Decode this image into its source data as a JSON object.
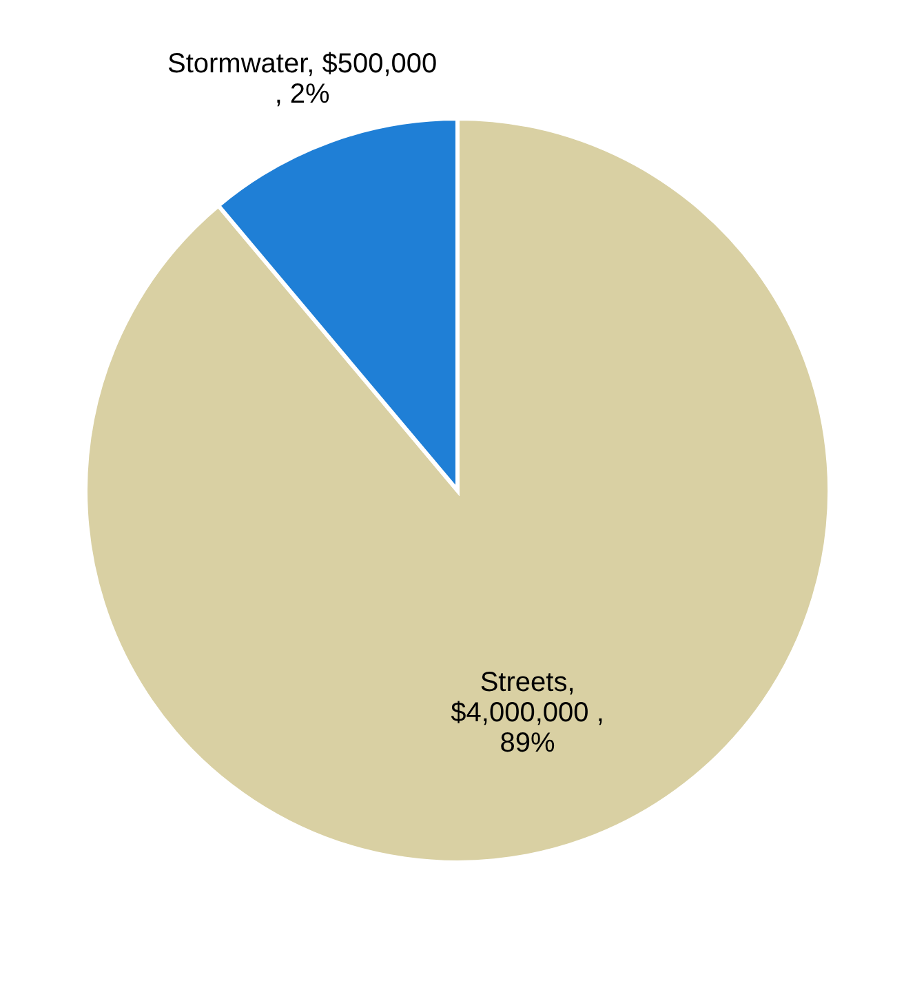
{
  "chart_data": {
    "type": "pie",
    "categories": [
      "Streets",
      "Stormwater"
    ],
    "values": [
      4000000,
      500000
    ],
    "colors": [
      "#d9d0a3",
      "#1f7fd6"
    ],
    "value_labels": [
      ",\n$4,000,000 ,\n89%",
      ",  $500,000\n, 2%"
    ]
  }
}
